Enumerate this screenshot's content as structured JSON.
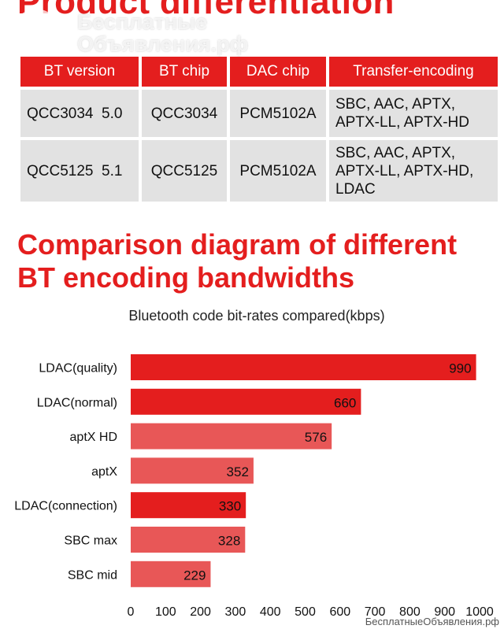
{
  "header": {
    "title": "Product differentiation"
  },
  "watermark": {
    "line1": "Бесплатные",
    "line2": "Объявления.рф"
  },
  "spec_table": {
    "columns": [
      "BT version",
      "BT chip",
      "DAC chip",
      "Transfer-encoding"
    ],
    "rows": [
      {
        "bt_version": "QCC3034  5.0",
        "bt_chip": "QCC3034",
        "dac_chip": "PCM5102A",
        "encoding": [
          "SBC, AAC, APTX,",
          "APTX-LL, APTX-HD"
        ]
      },
      {
        "bt_version": "QCC5125  5.1",
        "bt_chip": "QCC5125",
        "dac_chip": "PCM5102A",
        "encoding": [
          "SBC, AAC, APTX,",
          "APTX-LL, APTX-HD,",
          "LDAC"
        ]
      }
    ]
  },
  "section": {
    "title_line1": "Comparison diagram of different",
    "title_line2": "BT encoding bandwidths"
  },
  "colors": {
    "accent": "#e41e1e",
    "bar_dark": "#e41e1e",
    "bar_light": "#e85757",
    "cell_bg": "#e2e2e2"
  },
  "chart_data": {
    "type": "bar",
    "orientation": "horizontal",
    "title": "Bluetooth code bit-rates compared(kbps)",
    "categories": [
      "LDAC(quality)",
      "LDAC(normal)",
      "aptX HD",
      "aptX",
      "LDAC(connection)",
      "SBC max",
      "SBC mid"
    ],
    "values": [
      990,
      660,
      576,
      352,
      330,
      328,
      229
    ],
    "shade": [
      "dark",
      "dark",
      "light",
      "light",
      "dark",
      "light",
      "light"
    ],
    "xlim": [
      0,
      1000
    ],
    "xticks": [
      0,
      100,
      200,
      300,
      400,
      500,
      600,
      700,
      800,
      900,
      1000
    ],
    "xlabel": "",
    "ylabel": ""
  },
  "footer": {
    "site": "БесплатныеОбъявления.рф"
  }
}
